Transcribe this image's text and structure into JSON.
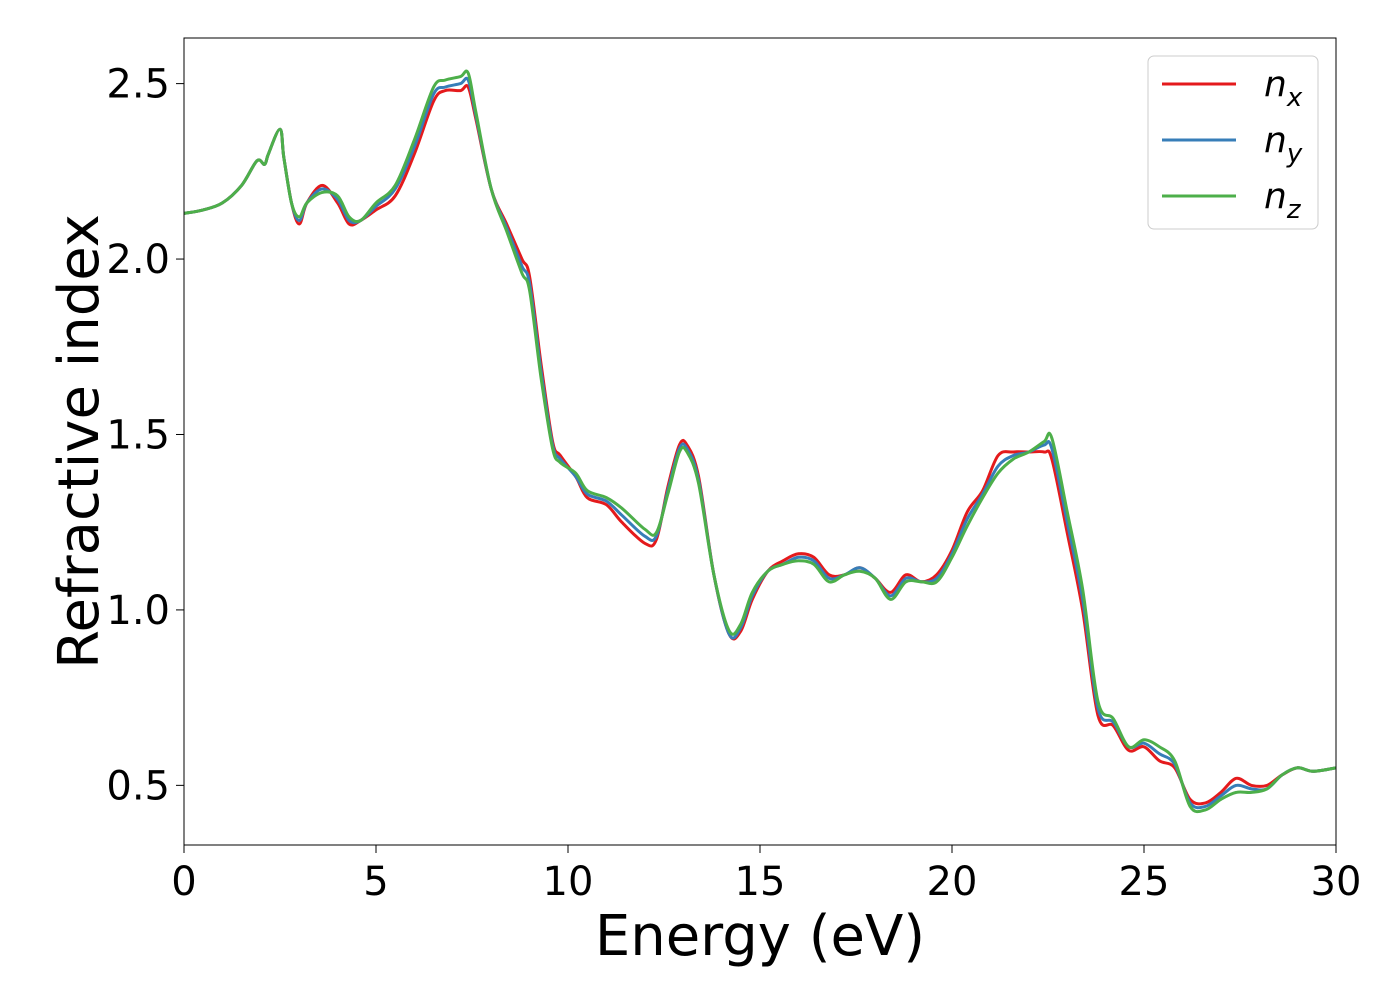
{
  "chart_data": {
    "type": "line",
    "title": "",
    "xlabel": "Energy (eV)",
    "ylabel": "Refractive index",
    "xlim": [
      0,
      30
    ],
    "ylim": [
      0.33,
      2.63
    ],
    "xticks": [
      0,
      5,
      10,
      15,
      20,
      25,
      30
    ],
    "xtick_labels": [
      "0",
      "5",
      "10",
      "15",
      "20",
      "25",
      "30"
    ],
    "yticks": [
      0.5,
      1.0,
      1.5,
      2.0,
      2.5
    ],
    "ytick_labels": [
      "0.5",
      "1.0",
      "1.5",
      "2.0",
      "2.5"
    ],
    "grid": false,
    "legend_position": "top-right",
    "series": [
      {
        "name": "n",
        "subscript": "x",
        "color": "#e41a1c",
        "x": [
          0,
          0.5,
          1,
          1.5,
          1.9,
          2.1,
          2.2,
          2.5,
          2.6,
          2.8,
          3.0,
          3.2,
          3.6,
          4.0,
          4.3,
          4.6,
          5.0,
          5.5,
          6.0,
          6.5,
          6.8,
          7.2,
          7.4,
          7.6,
          8.0,
          8.4,
          8.8,
          9.0,
          9.3,
          9.6,
          9.8,
          10.2,
          10.5,
          11.0,
          11.4,
          12.0,
          12.3,
          12.6,
          12.9,
          13.1,
          13.4,
          13.8,
          14.2,
          14.5,
          14.8,
          15.2,
          15.6,
          16.0,
          16.4,
          16.8,
          17.2,
          17.6,
          18.0,
          18.4,
          18.8,
          19.2,
          19.6,
          20.0,
          20.4,
          20.8,
          21.2,
          21.6,
          22.0,
          22.4,
          22.6,
          23.0,
          23.4,
          23.8,
          24.2,
          24.6,
          25.0,
          25.4,
          25.8,
          26.2,
          26.6,
          27.0,
          27.4,
          27.8,
          28.2,
          28.6,
          29.0,
          29.4,
          30.0
        ],
        "values": [
          2.13,
          2.14,
          2.16,
          2.21,
          2.28,
          2.27,
          2.3,
          2.37,
          2.29,
          2.16,
          2.1,
          2.16,
          2.21,
          2.16,
          2.1,
          2.11,
          2.14,
          2.18,
          2.3,
          2.45,
          2.48,
          2.48,
          2.49,
          2.4,
          2.2,
          2.1,
          2.0,
          1.95,
          1.7,
          1.48,
          1.44,
          1.38,
          1.32,
          1.3,
          1.25,
          1.19,
          1.2,
          1.35,
          1.47,
          1.47,
          1.38,
          1.1,
          0.93,
          0.94,
          1.03,
          1.11,
          1.14,
          1.16,
          1.15,
          1.1,
          1.1,
          1.12,
          1.09,
          1.05,
          1.1,
          1.08,
          1.1,
          1.17,
          1.28,
          1.34,
          1.44,
          1.45,
          1.45,
          1.45,
          1.43,
          1.22,
          1.0,
          0.7,
          0.67,
          0.6,
          0.61,
          0.57,
          0.55,
          0.46,
          0.45,
          0.48,
          0.52,
          0.5,
          0.5,
          0.53,
          0.55,
          0.54,
          0.55
        ]
      },
      {
        "name": "n",
        "subscript": "y",
        "color": "#377eb8",
        "x": [
          0,
          0.5,
          1,
          1.5,
          1.9,
          2.1,
          2.2,
          2.5,
          2.6,
          2.8,
          3.0,
          3.2,
          3.6,
          4.0,
          4.3,
          4.6,
          5.0,
          5.5,
          6.0,
          6.5,
          6.8,
          7.2,
          7.4,
          7.6,
          8.0,
          8.4,
          8.8,
          9.0,
          9.3,
          9.6,
          9.8,
          10.2,
          10.5,
          11.0,
          11.4,
          12.0,
          12.3,
          12.6,
          12.9,
          13.1,
          13.4,
          13.8,
          14.2,
          14.5,
          14.8,
          15.2,
          15.6,
          16.0,
          16.4,
          16.8,
          17.2,
          17.6,
          18.0,
          18.4,
          18.8,
          19.2,
          19.6,
          20.0,
          20.4,
          20.8,
          21.2,
          21.6,
          22.0,
          22.4,
          22.6,
          23.0,
          23.4,
          23.8,
          24.2,
          24.6,
          25.0,
          25.4,
          25.8,
          26.2,
          26.6,
          27.0,
          27.4,
          27.8,
          28.2,
          28.6,
          29.0,
          29.4,
          30.0
        ],
        "values": [
          2.13,
          2.14,
          2.16,
          2.21,
          2.28,
          2.27,
          2.3,
          2.37,
          2.29,
          2.16,
          2.11,
          2.16,
          2.2,
          2.17,
          2.11,
          2.11,
          2.15,
          2.2,
          2.32,
          2.47,
          2.49,
          2.5,
          2.51,
          2.41,
          2.2,
          2.09,
          1.98,
          1.93,
          1.68,
          1.47,
          1.43,
          1.38,
          1.33,
          1.31,
          1.27,
          1.21,
          1.21,
          1.34,
          1.46,
          1.46,
          1.37,
          1.1,
          0.93,
          0.95,
          1.04,
          1.11,
          1.13,
          1.15,
          1.14,
          1.09,
          1.1,
          1.12,
          1.09,
          1.04,
          1.09,
          1.08,
          1.09,
          1.16,
          1.26,
          1.33,
          1.41,
          1.44,
          1.45,
          1.47,
          1.46,
          1.25,
          1.03,
          0.72,
          0.68,
          0.61,
          0.62,
          0.59,
          0.56,
          0.45,
          0.44,
          0.47,
          0.5,
          0.49,
          0.49,
          0.53,
          0.55,
          0.54,
          0.55
        ]
      },
      {
        "name": "n",
        "subscript": "z",
        "color": "#4daf4a",
        "x": [
          0,
          0.5,
          1,
          1.5,
          1.9,
          2.1,
          2.2,
          2.5,
          2.6,
          2.8,
          3.0,
          3.2,
          3.6,
          4.0,
          4.3,
          4.6,
          5.0,
          5.5,
          6.0,
          6.5,
          6.8,
          7.2,
          7.4,
          7.6,
          8.0,
          8.4,
          8.8,
          9.0,
          9.3,
          9.6,
          9.8,
          10.2,
          10.5,
          11.0,
          11.4,
          12.0,
          12.3,
          12.6,
          12.9,
          13.1,
          13.4,
          13.8,
          14.2,
          14.5,
          14.8,
          15.2,
          15.6,
          16.0,
          16.4,
          16.8,
          17.2,
          17.6,
          18.0,
          18.4,
          18.8,
          19.2,
          19.6,
          20.0,
          20.4,
          20.8,
          21.2,
          21.6,
          22.0,
          22.4,
          22.6,
          23.0,
          23.4,
          23.8,
          24.2,
          24.6,
          25.0,
          25.4,
          25.8,
          26.2,
          26.6,
          27.0,
          27.4,
          27.8,
          28.2,
          28.6,
          29.0,
          29.4,
          30.0
        ],
        "values": [
          2.13,
          2.14,
          2.16,
          2.21,
          2.28,
          2.27,
          2.3,
          2.37,
          2.29,
          2.16,
          2.12,
          2.16,
          2.19,
          2.18,
          2.12,
          2.11,
          2.16,
          2.21,
          2.34,
          2.49,
          2.51,
          2.52,
          2.53,
          2.42,
          2.2,
          2.08,
          1.96,
          1.91,
          1.66,
          1.46,
          1.42,
          1.39,
          1.34,
          1.32,
          1.29,
          1.23,
          1.22,
          1.33,
          1.45,
          1.45,
          1.36,
          1.1,
          0.94,
          0.96,
          1.05,
          1.11,
          1.13,
          1.14,
          1.13,
          1.08,
          1.1,
          1.11,
          1.09,
          1.03,
          1.08,
          1.08,
          1.08,
          1.15,
          1.24,
          1.32,
          1.39,
          1.43,
          1.45,
          1.48,
          1.49,
          1.28,
          1.06,
          0.74,
          0.69,
          0.61,
          0.63,
          0.61,
          0.57,
          0.44,
          0.43,
          0.46,
          0.48,
          0.48,
          0.49,
          0.53,
          0.55,
          0.54,
          0.55
        ]
      }
    ]
  }
}
